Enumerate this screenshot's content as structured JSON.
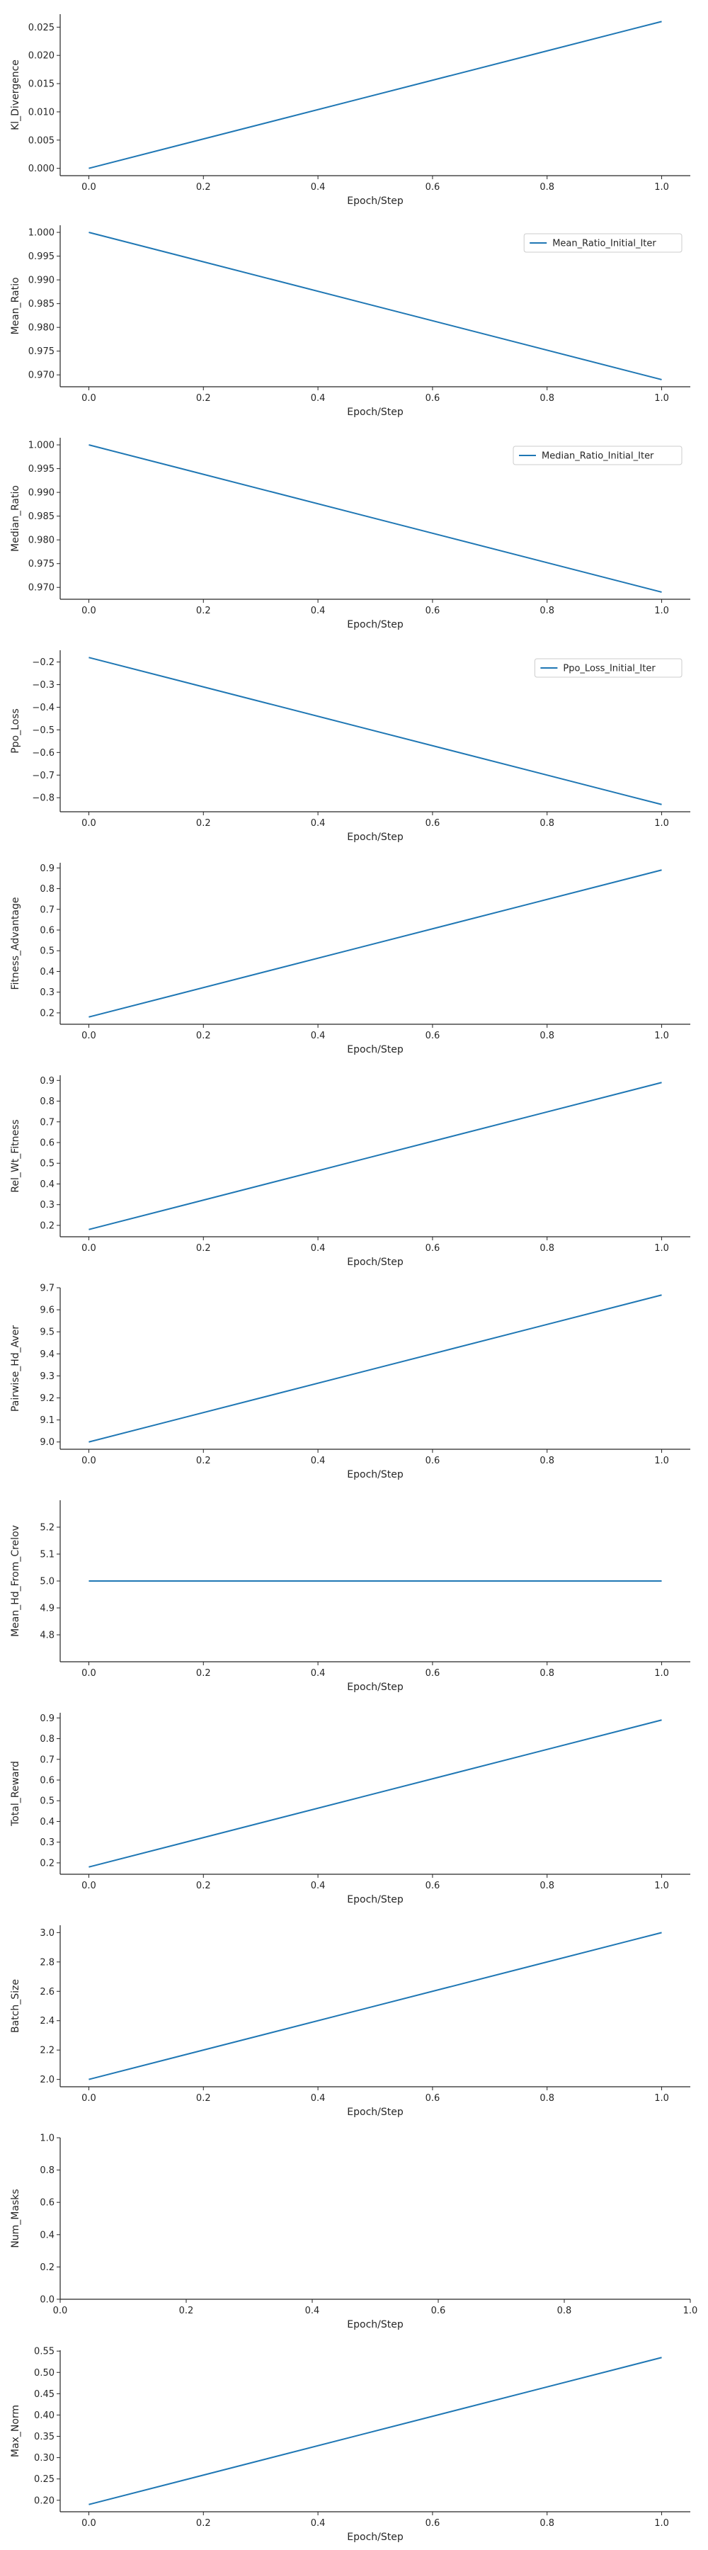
{
  "chart_data": [
    {
      "type": "line",
      "xlabel": "Epoch/Step",
      "ylabel": "Kl_Divergence",
      "xlim": [
        -0.05,
        1.05
      ],
      "ylim": [
        -0.0013,
        0.0273
      ],
      "xticks": [
        0.0,
        0.2,
        0.4,
        0.6,
        0.8,
        1.0
      ],
      "xtick_labels": [
        "0.0",
        "0.2",
        "0.4",
        "0.6",
        "0.8",
        "1.0"
      ],
      "yticks": [
        0.0,
        0.005,
        0.01,
        0.015,
        0.02,
        0.025
      ],
      "ytick_labels": [
        "0.000",
        "0.005",
        "0.010",
        "0.015",
        "0.020",
        "0.025"
      ],
      "series": [
        {
          "x": [
            0,
            1
          ],
          "y": [
            0.0,
            0.026
          ]
        }
      ],
      "legend": null
    },
    {
      "type": "line",
      "xlabel": "Epoch/Step",
      "ylabel": "Mean_Ratio",
      "xlim": [
        -0.05,
        1.05
      ],
      "ylim": [
        0.9675,
        1.0015
      ],
      "xticks": [
        0.0,
        0.2,
        0.4,
        0.6,
        0.8,
        1.0
      ],
      "xtick_labels": [
        "0.0",
        "0.2",
        "0.4",
        "0.6",
        "0.8",
        "1.0"
      ],
      "yticks": [
        0.97,
        0.975,
        0.98,
        0.985,
        0.99,
        0.995,
        1.0
      ],
      "ytick_labels": [
        "0.970",
        "0.975",
        "0.980",
        "0.985",
        "0.990",
        "0.995",
        "1.000"
      ],
      "series": [
        {
          "name": "Mean_Ratio_Initial_Iter",
          "x": [
            0,
            1
          ],
          "y": [
            1.0,
            0.969
          ]
        }
      ],
      "legend": "top-right"
    },
    {
      "type": "line",
      "xlabel": "Epoch/Step",
      "ylabel": "Median_Ratio",
      "xlim": [
        -0.05,
        1.05
      ],
      "ylim": [
        0.9675,
        1.0015
      ],
      "xticks": [
        0.0,
        0.2,
        0.4,
        0.6,
        0.8,
        1.0
      ],
      "xtick_labels": [
        "0.0",
        "0.2",
        "0.4",
        "0.6",
        "0.8",
        "1.0"
      ],
      "yticks": [
        0.97,
        0.975,
        0.98,
        0.985,
        0.99,
        0.995,
        1.0
      ],
      "ytick_labels": [
        "0.970",
        "0.975",
        "0.980",
        "0.985",
        "0.990",
        "0.995",
        "1.000"
      ],
      "series": [
        {
          "name": "Median_Ratio_Initial_Iter",
          "x": [
            0,
            1
          ],
          "y": [
            1.0,
            0.969
          ]
        }
      ],
      "legend": "top-right"
    },
    {
      "type": "line",
      "xlabel": "Epoch/Step",
      "ylabel": "Ppo_Loss",
      "xlim": [
        -0.05,
        1.05
      ],
      "ylim": [
        -0.862,
        -0.148
      ],
      "xticks": [
        0.0,
        0.2,
        0.4,
        0.6,
        0.8,
        1.0
      ],
      "xtick_labels": [
        "0.0",
        "0.2",
        "0.4",
        "0.6",
        "0.8",
        "1.0"
      ],
      "yticks": [
        -0.8,
        -0.7,
        -0.6,
        -0.5,
        -0.4,
        -0.3,
        -0.2
      ],
      "ytick_labels": [
        "−0.8",
        "−0.7",
        "−0.6",
        "−0.5",
        "−0.4",
        "−0.3",
        "−0.2"
      ],
      "series": [
        {
          "name": "Ppo_Loss_Initial_Iter",
          "x": [
            0,
            1
          ],
          "y": [
            -0.18,
            -0.83
          ]
        }
      ],
      "legend": "top-right"
    },
    {
      "type": "line",
      "xlabel": "Epoch/Step",
      "ylabel": "Fitness_Advantage",
      "xlim": [
        -0.05,
        1.05
      ],
      "ylim": [
        0.145,
        0.925
      ],
      "xticks": [
        0.0,
        0.2,
        0.4,
        0.6,
        0.8,
        1.0
      ],
      "xtick_labels": [
        "0.0",
        "0.2",
        "0.4",
        "0.6",
        "0.8",
        "1.0"
      ],
      "yticks": [
        0.2,
        0.3,
        0.4,
        0.5,
        0.6,
        0.7,
        0.8,
        0.9
      ],
      "ytick_labels": [
        "0.2",
        "0.3",
        "0.4",
        "0.5",
        "0.6",
        "0.7",
        "0.8",
        "0.9"
      ],
      "series": [
        {
          "x": [
            0,
            1
          ],
          "y": [
            0.18,
            0.89
          ]
        }
      ],
      "legend": null
    },
    {
      "type": "line",
      "xlabel": "Epoch/Step",
      "ylabel": "Rel_Wt_Fitness",
      "xlim": [
        -0.05,
        1.05
      ],
      "ylim": [
        0.145,
        0.925
      ],
      "xticks": [
        0.0,
        0.2,
        0.4,
        0.6,
        0.8,
        1.0
      ],
      "xtick_labels": [
        "0.0",
        "0.2",
        "0.4",
        "0.6",
        "0.8",
        "1.0"
      ],
      "yticks": [
        0.2,
        0.3,
        0.4,
        0.5,
        0.6,
        0.7,
        0.8,
        0.9
      ],
      "ytick_labels": [
        "0.2",
        "0.3",
        "0.4",
        "0.5",
        "0.6",
        "0.7",
        "0.8",
        "0.9"
      ],
      "series": [
        {
          "x": [
            0,
            1
          ],
          "y": [
            0.18,
            0.89
          ]
        }
      ],
      "legend": null
    },
    {
      "type": "line",
      "xlabel": "Epoch/Step",
      "ylabel": "Pairwise_Hd_Aver",
      "xlim": [
        -0.05,
        1.05
      ],
      "ylim": [
        8.967,
        9.7
      ],
      "xticks": [
        0.0,
        0.2,
        0.4,
        0.6,
        0.8,
        1.0
      ],
      "xtick_labels": [
        "0.0",
        "0.2",
        "0.4",
        "0.6",
        "0.8",
        "1.0"
      ],
      "yticks": [
        9.0,
        9.1,
        9.2,
        9.3,
        9.4,
        9.5,
        9.6,
        9.7
      ],
      "ytick_labels": [
        "9.0",
        "9.1",
        "9.2",
        "9.3",
        "9.4",
        "9.5",
        "9.6",
        "9.7"
      ],
      "series": [
        {
          "x": [
            0,
            1
          ],
          "y": [
            9.0,
            9.667
          ]
        }
      ],
      "legend": null
    },
    {
      "type": "line",
      "xlabel": "Epoch/Step",
      "ylabel": "Mean_Hd_From_Crelov",
      "xlim": [
        -0.05,
        1.05
      ],
      "ylim": [
        4.7,
        5.3
      ],
      "xticks": [
        0.0,
        0.2,
        0.4,
        0.6,
        0.8,
        1.0
      ],
      "xtick_labels": [
        "0.0",
        "0.2",
        "0.4",
        "0.6",
        "0.8",
        "1.0"
      ],
      "yticks": [
        4.8,
        4.9,
        5.0,
        5.1,
        5.2
      ],
      "ytick_labels": [
        "4.8",
        "4.9",
        "5.0",
        "5.1",
        "5.2"
      ],
      "series": [
        {
          "x": [
            0,
            1
          ],
          "y": [
            5.0,
            5.0
          ]
        }
      ],
      "legend": null
    },
    {
      "type": "line",
      "xlabel": "Epoch/Step",
      "ylabel": "Total_Reward",
      "xlim": [
        -0.05,
        1.05
      ],
      "ylim": [
        0.145,
        0.925
      ],
      "xticks": [
        0.0,
        0.2,
        0.4,
        0.6,
        0.8,
        1.0
      ],
      "xtick_labels": [
        "0.0",
        "0.2",
        "0.4",
        "0.6",
        "0.8",
        "1.0"
      ],
      "yticks": [
        0.2,
        0.3,
        0.4,
        0.5,
        0.6,
        0.7,
        0.8,
        0.9
      ],
      "ytick_labels": [
        "0.2",
        "0.3",
        "0.4",
        "0.5",
        "0.6",
        "0.7",
        "0.8",
        "0.9"
      ],
      "series": [
        {
          "x": [
            0,
            1
          ],
          "y": [
            0.18,
            0.89
          ]
        }
      ],
      "legend": null
    },
    {
      "type": "line",
      "xlabel": "Epoch/Step",
      "ylabel": "Batch_Size",
      "xlim": [
        -0.05,
        1.05
      ],
      "ylim": [
        1.95,
        3.05
      ],
      "xticks": [
        0.0,
        0.2,
        0.4,
        0.6,
        0.8,
        1.0
      ],
      "xtick_labels": [
        "0.0",
        "0.2",
        "0.4",
        "0.6",
        "0.8",
        "1.0"
      ],
      "yticks": [
        2.0,
        2.2,
        2.4,
        2.6,
        2.8,
        3.0
      ],
      "ytick_labels": [
        "2.0",
        "2.2",
        "2.4",
        "2.6",
        "2.8",
        "3.0"
      ],
      "series": [
        {
          "x": [
            0,
            1
          ],
          "y": [
            2.0,
            3.0
          ]
        }
      ],
      "legend": null
    },
    {
      "type": "line",
      "xlabel": "Epoch/Step",
      "ylabel": "Num_Masks",
      "xlim": [
        0.0,
        1.0
      ],
      "ylim": [
        0.0,
        1.0
      ],
      "xticks": [
        0.0,
        0.2,
        0.4,
        0.6,
        0.8,
        1.0
      ],
      "xtick_labels": [
        "0.0",
        "0.2",
        "0.4",
        "0.6",
        "0.8",
        "1.0"
      ],
      "yticks": [
        0.0,
        0.2,
        0.4,
        0.6,
        0.8,
        1.0
      ],
      "ytick_labels": [
        "0.0",
        "0.2",
        "0.4",
        "0.6",
        "0.8",
        "1.0"
      ],
      "series": [],
      "legend": null
    },
    {
      "type": "line",
      "xlabel": "Epoch/Step",
      "ylabel": "Max_Norm",
      "xlim": [
        -0.05,
        1.05
      ],
      "ylim": [
        0.173,
        0.552
      ],
      "xticks": [
        0.0,
        0.2,
        0.4,
        0.6,
        0.8,
        1.0
      ],
      "xtick_labels": [
        "0.0",
        "0.2",
        "0.4",
        "0.6",
        "0.8",
        "1.0"
      ],
      "yticks": [
        0.2,
        0.25,
        0.3,
        0.35,
        0.4,
        0.45,
        0.5,
        0.55
      ],
      "ytick_labels": [
        "0.20",
        "0.25",
        "0.30",
        "0.35",
        "0.40",
        "0.45",
        "0.50",
        "0.55"
      ],
      "series": [
        {
          "x": [
            0,
            1
          ],
          "y": [
            0.19,
            0.535
          ]
        }
      ],
      "legend": null
    }
  ],
  "colors": {
    "line": "#1f77b4",
    "axis": "#262626",
    "background": "#ffffff"
  }
}
